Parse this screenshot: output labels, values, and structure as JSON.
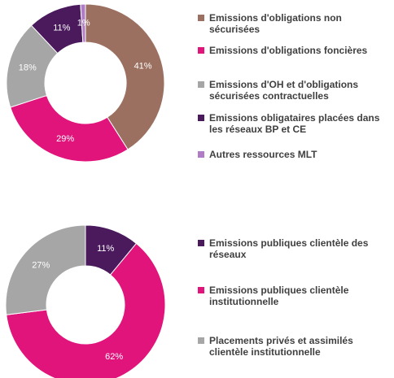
{
  "chart_data": [
    {
      "type": "pie",
      "categories": [
        "Emissions d'obligations non sécurisées",
        "Emissions d'obligations foncières",
        "Emissions d'OH et d'obligations sécurisées contractuelles",
        "Emissions obligataires placées dans les réseaux BP et CE",
        "Autres ressources MLT"
      ],
      "values": [
        41,
        29,
        18,
        11,
        1
      ],
      "value_labels": [
        "41%",
        "29%",
        "18%",
        "11%",
        "1%"
      ],
      "colors": [
        "#9c7060",
        "#e0147a",
        "#a6a6a6",
        "#4a1a5c",
        "#b07cc6"
      ]
    },
    {
      "type": "pie",
      "categories": [
        "Emissions publiques clientèle des réseaux",
        "Emissions publiques clientèle institutionnelle",
        "Placements privés et assimilés clientèle institutionnelle"
      ],
      "values": [
        11,
        62,
        27
      ],
      "value_labels": [
        "11%",
        "62%",
        "27%"
      ],
      "colors": [
        "#4a1a5c",
        "#e0147a",
        "#a6a6a6"
      ]
    }
  ]
}
